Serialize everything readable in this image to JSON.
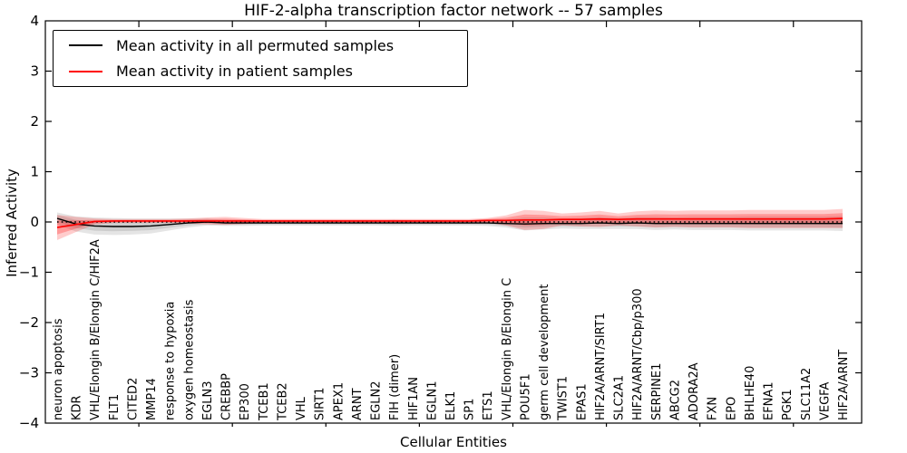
{
  "title": "HIF-2-alpha transcription factor network -- 57 samples",
  "legend": {
    "entries": [
      {
        "label": "Mean activity in all permuted samples",
        "color": "#000000"
      },
      {
        "label": "Mean activity in patient samples",
        "color": "#ff0000"
      }
    ]
  },
  "chart_data": {
    "type": "line",
    "title": "HIF-2-alpha transcription factor network -- 57 samples",
    "xlabel": "Cellular Entities",
    "ylabel": "Inferred Activity",
    "ylim": [
      -4,
      4
    ],
    "y_ticks": [
      "4",
      "3",
      "2",
      "1",
      "0",
      "−1",
      "−2",
      "−3",
      "−4"
    ],
    "y_tick_values": [
      4,
      3,
      2,
      1,
      0,
      -1,
      -2,
      -3,
      -4
    ],
    "grid": false,
    "legend_position": "upper left",
    "zero_reference_line": 0,
    "categories": [
      "neuron apoptosis",
      "KDR",
      "VHL/Elongin B/Elongin C/HIF2A",
      "FLT1",
      "CITED2",
      "MMP14",
      "response to hypoxia",
      "oxygen homeostasis",
      "EGLN3",
      "CREBBP",
      "EP300",
      "TCEB1",
      "TCEB2",
      "VHL",
      "SIRT1",
      "APEX1",
      "ARNT",
      "EGLN2",
      "FIH (dimer)",
      "HIF1AN",
      "EGLN1",
      "ELK1",
      "SP1",
      "ETS1",
      "VHL/Elongin B/Elongin C",
      "POU5F1",
      "germ cell development",
      "TWIST1",
      "EPAS1",
      "HIF2A/ARNT/SIRT1",
      "SLC2A1",
      "HIF2A/ARNT/Cbp/p300",
      "SERPINE1",
      "ABCG2",
      "ADORA2A",
      "FXN",
      "EPO",
      "BHLHE40",
      "EFNA1",
      "PGK1",
      "SLC11A2",
      "VEGFA",
      "HIF2A/ARNT"
    ],
    "series": [
      {
        "name": "Mean activity in all permuted samples",
        "color": "#000000",
        "band_color": "#000000",
        "values": [
          0.07,
          -0.04,
          -0.08,
          -0.09,
          -0.09,
          -0.08,
          -0.05,
          -0.02,
          0.0,
          -0.02,
          -0.02,
          -0.02,
          -0.02,
          -0.02,
          -0.02,
          -0.02,
          -0.02,
          -0.02,
          -0.02,
          -0.02,
          -0.02,
          -0.02,
          -0.02,
          -0.02,
          -0.03,
          -0.04,
          -0.03,
          -0.03,
          -0.03,
          -0.02,
          -0.03,
          -0.02,
          -0.03,
          -0.03,
          -0.03,
          -0.03,
          -0.03,
          -0.03,
          -0.03,
          -0.03,
          -0.03,
          -0.03,
          -0.03
        ],
        "band_halfwidth": [
          0.12,
          0.15,
          0.17,
          0.17,
          0.16,
          0.15,
          0.12,
          0.09,
          0.07,
          0.06,
          0.06,
          0.05,
          0.05,
          0.05,
          0.05,
          0.05,
          0.05,
          0.05,
          0.06,
          0.05,
          0.05,
          0.05,
          0.05,
          0.06,
          0.08,
          0.13,
          0.12,
          0.1,
          0.11,
          0.12,
          0.11,
          0.12,
          0.13,
          0.12,
          0.13,
          0.13,
          0.13,
          0.14,
          0.14,
          0.14,
          0.14,
          0.14,
          0.15
        ]
      },
      {
        "name": "Mean activity in patient samples",
        "color": "#ff0000",
        "band_color": "#ff0000",
        "values": [
          -0.11,
          -0.05,
          0.01,
          0.02,
          0.02,
          0.02,
          0.02,
          0.02,
          0.02,
          0.02,
          0.02,
          0.02,
          0.02,
          0.02,
          0.02,
          0.02,
          0.02,
          0.02,
          0.02,
          0.02,
          0.02,
          0.02,
          0.02,
          0.03,
          0.03,
          0.04,
          0.04,
          0.05,
          0.05,
          0.06,
          0.05,
          0.06,
          0.06,
          0.06,
          0.06,
          0.06,
          0.06,
          0.06,
          0.06,
          0.06,
          0.06,
          0.06,
          0.07
        ],
        "band_halfwidth": [
          0.25,
          0.15,
          0.06,
          0.04,
          0.04,
          0.04,
          0.04,
          0.05,
          0.07,
          0.08,
          0.06,
          0.04,
          0.04,
          0.04,
          0.04,
          0.04,
          0.04,
          0.04,
          0.04,
          0.04,
          0.04,
          0.04,
          0.04,
          0.05,
          0.1,
          0.2,
          0.18,
          0.12,
          0.14,
          0.16,
          0.12,
          0.15,
          0.17,
          0.16,
          0.17,
          0.17,
          0.17,
          0.18,
          0.18,
          0.18,
          0.18,
          0.18,
          0.19
        ]
      }
    ]
  }
}
